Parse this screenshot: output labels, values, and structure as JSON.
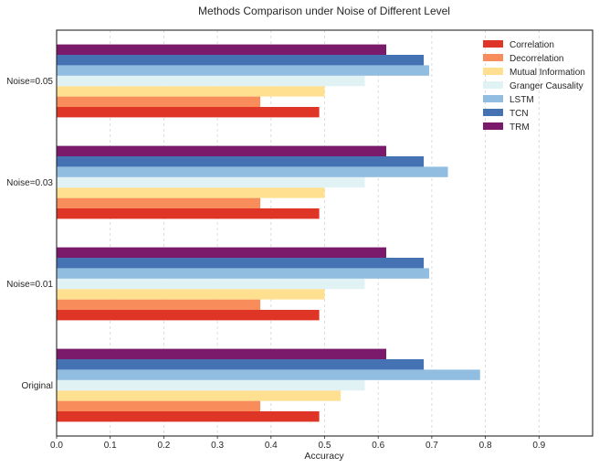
{
  "chart_data": {
    "type": "bar",
    "orientation": "horizontal",
    "title": "Methods Comparison under Noise of Different Level",
    "xlabel": "Accuracy",
    "ylabel": "",
    "xlim": [
      0,
      1.0
    ],
    "xticks": [
      "0.0",
      "0.1",
      "0.2",
      "0.3",
      "0.4",
      "0.5",
      "0.6",
      "0.7",
      "0.8",
      "0.9"
    ],
    "grid": "vertical dashed",
    "legend_position": "top-right",
    "categories": [
      "Original",
      "Noise=0.01",
      "Noise=0.03",
      "Noise=0.05"
    ],
    "series": [
      {
        "name": "Correlation",
        "color": "#de3526",
        "values": [
          0.49,
          0.49,
          0.49,
          0.49
        ]
      },
      {
        "name": "Decorrelation",
        "color": "#f88d5b",
        "values": [
          0.38,
          0.38,
          0.38,
          0.38
        ]
      },
      {
        "name": "Mutual Information",
        "color": "#fee090",
        "values": [
          0.53,
          0.5,
          0.5,
          0.5
        ]
      },
      {
        "name": "Granger Causality",
        "color": "#e1f2f5",
        "values": [
          0.575,
          0.575,
          0.575,
          0.575
        ]
      },
      {
        "name": "LSTM",
        "color": "#90bde0",
        "values": [
          0.79,
          0.695,
          0.73,
          0.695
        ]
      },
      {
        "name": "TCN",
        "color": "#4572b3",
        "values": [
          0.685,
          0.685,
          0.685,
          0.685
        ]
      },
      {
        "name": "TRM",
        "color": "#7b1a6b",
        "values": [
          0.615,
          0.615,
          0.615,
          0.615
        ]
      }
    ]
  }
}
